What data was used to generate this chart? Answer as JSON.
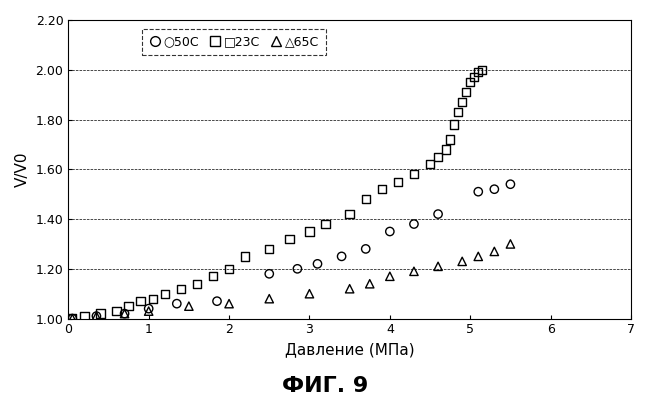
{
  "title": "ФИГ. 9",
  "xlabel": "Давление (МПа)",
  "ylabel": "V/V0",
  "xlim": [
    0,
    7
  ],
  "ylim": [
    1.0,
    2.2
  ],
  "yticks": [
    1.0,
    1.2,
    1.4,
    1.6,
    1.8,
    2.0,
    2.2
  ],
  "xticks": [
    0,
    1,
    2,
    3,
    4,
    5,
    6,
    7
  ],
  "series_50C": {
    "label": "50C",
    "x": [
      0.05,
      0.35,
      0.7,
      1.0,
      1.35,
      1.85,
      2.5,
      2.85,
      3.1,
      3.4,
      3.7,
      4.0,
      4.3,
      4.6,
      5.1,
      5.3,
      5.5
    ],
    "y": [
      1.0,
      1.01,
      1.02,
      1.04,
      1.06,
      1.07,
      1.18,
      1.2,
      1.22,
      1.25,
      1.28,
      1.35,
      1.38,
      1.42,
      1.51,
      1.52,
      1.54
    ]
  },
  "series_23C": {
    "label": "23C",
    "x": [
      0.05,
      0.2,
      0.4,
      0.6,
      0.75,
      0.9,
      1.05,
      1.2,
      1.4,
      1.6,
      1.8,
      2.0,
      2.2,
      2.5,
      2.75,
      3.0,
      3.2,
      3.5,
      3.7,
      3.9,
      4.1,
      4.3,
      4.5,
      4.6,
      4.7,
      4.75,
      4.8,
      4.85,
      4.9,
      4.95,
      5.0,
      5.05,
      5.1,
      5.15
    ],
    "y": [
      1.0,
      1.01,
      1.02,
      1.03,
      1.05,
      1.07,
      1.08,
      1.1,
      1.12,
      1.14,
      1.17,
      1.2,
      1.25,
      1.28,
      1.32,
      1.35,
      1.38,
      1.42,
      1.48,
      1.52,
      1.55,
      1.58,
      1.62,
      1.65,
      1.68,
      1.72,
      1.78,
      1.83,
      1.87,
      1.91,
      1.95,
      1.97,
      1.99,
      2.0
    ]
  },
  "series_65C": {
    "label": "65C",
    "x": [
      0.05,
      0.35,
      0.7,
      1.0,
      1.5,
      2.0,
      2.5,
      3.0,
      3.5,
      3.75,
      4.0,
      4.3,
      4.6,
      4.9,
      5.1,
      5.3,
      5.5
    ],
    "y": [
      1.0,
      1.01,
      1.02,
      1.03,
      1.05,
      1.06,
      1.08,
      1.1,
      1.12,
      1.14,
      1.17,
      1.19,
      1.21,
      1.23,
      1.25,
      1.27,
      1.3
    ]
  },
  "background_color": "#ffffff"
}
